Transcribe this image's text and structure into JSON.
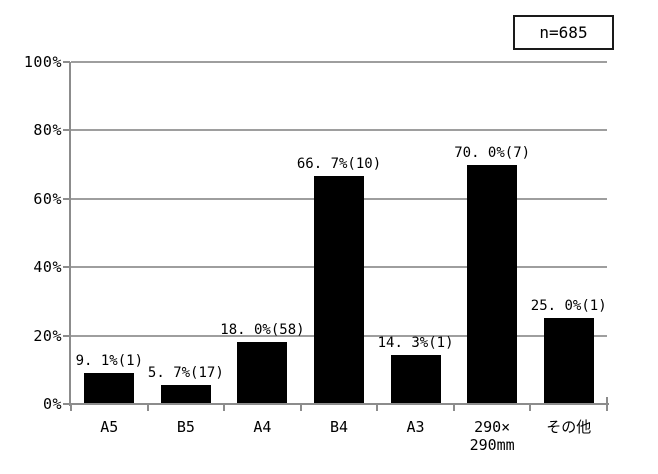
{
  "chart_data": {
    "type": "bar",
    "title": "",
    "xlabel": "",
    "ylabel": "",
    "categories": [
      "A5",
      "B5",
      "A4",
      "B4",
      "A3",
      "290×\n290mm",
      "その他"
    ],
    "values": [
      9.1,
      5.7,
      18.0,
      66.7,
      14.3,
      70.0,
      25.0
    ],
    "counts": [
      1,
      17,
      58,
      10,
      1,
      7,
      1
    ],
    "bar_labels": [
      "9. 1%(1)",
      "5. 7%(17)",
      "18. 0%(58)",
      "66. 7%(10)",
      "14. 3%(1)",
      "70. 0%(7)",
      "25. 0%(1)"
    ],
    "ylim": [
      0,
      100
    ],
    "ytick_interval": 20,
    "ytick_labels": [
      "0%",
      "20%",
      "40%",
      "60%",
      "80%",
      "100%"
    ],
    "grid": true,
    "legend": "none",
    "sample_size_label": "n=685",
    "colors": {
      "bar": "#000000",
      "gridline": "#9e9e9e",
      "axis": "#8c8c8c",
      "text": "#000000",
      "background": "#ffffff",
      "annotation_border": "#1a1a1a"
    }
  }
}
